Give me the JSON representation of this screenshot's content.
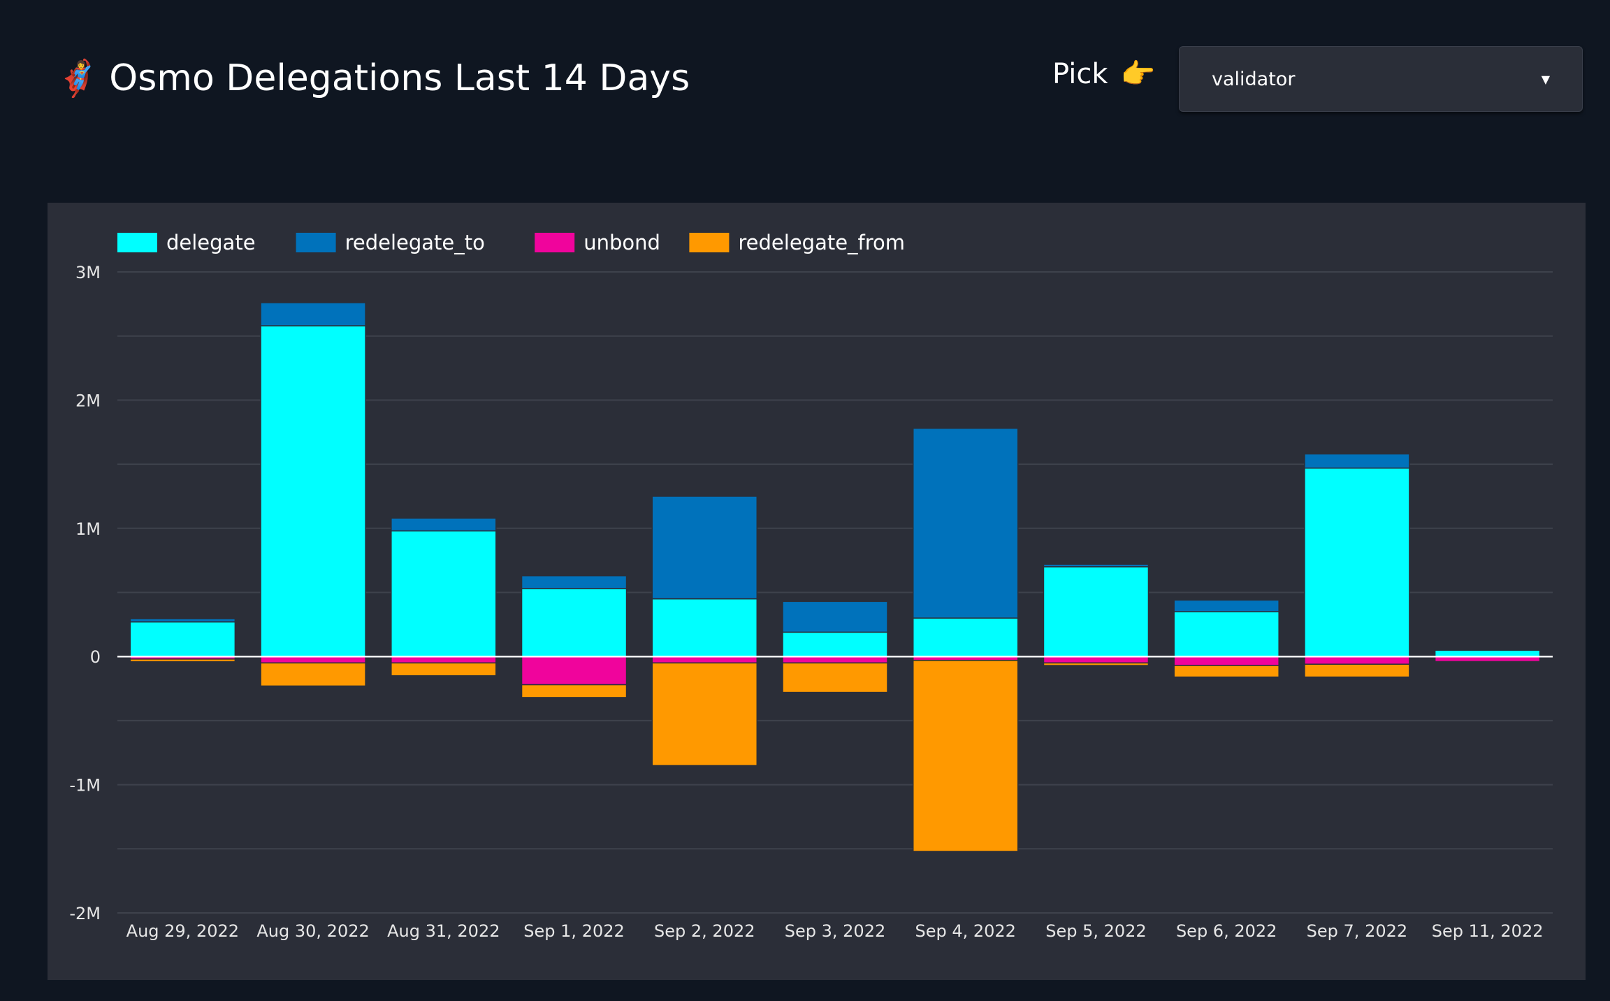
{
  "header": {
    "emoji": "🦸‍♀️",
    "title": "Osmo Delegations Last 14 Days",
    "pick_label": "Pick",
    "pick_emoji": "👉"
  },
  "select": {
    "value": "validator",
    "icon": "caret-down-icon"
  },
  "chart_data": {
    "type": "bar",
    "stacked": true,
    "grid": true,
    "legend": "top-left",
    "categories": [
      "Aug 29, 2022",
      "Aug 30, 2022",
      "Aug 31, 2022",
      "Sep 1, 2022",
      "Sep 2, 2022",
      "Sep 3, 2022",
      "Sep 4, 2022",
      "Sep 5, 2022",
      "Sep 6, 2022",
      "Sep 7, 2022",
      "Sep 11, 2022"
    ],
    "ylim": [
      -2000000,
      3000000
    ],
    "yticks": [
      {
        "value": 3000000,
        "label": "3M"
      },
      {
        "value": 2000000,
        "label": "2M"
      },
      {
        "value": 1000000,
        "label": "1M"
      },
      {
        "value": 0,
        "label": "0"
      },
      {
        "value": -1000000,
        "label": "-1M"
      },
      {
        "value": -2000000,
        "label": "-2M"
      }
    ],
    "series": [
      {
        "name": "delegate",
        "color": "#00ffff",
        "values": [
          270000,
          2580000,
          980000,
          530000,
          450000,
          190000,
          300000,
          700000,
          350000,
          1470000,
          50000
        ]
      },
      {
        "name": "redelegate_to",
        "color": "#0072bb",
        "values": [
          25000,
          180000,
          100000,
          100000,
          800000,
          240000,
          1480000,
          20000,
          90000,
          110000,
          5000
        ]
      },
      {
        "name": "unbond",
        "color": "#f0049c",
        "values": [
          -20000,
          -50000,
          -50000,
          -220000,
          -50000,
          -50000,
          -30000,
          -50000,
          -70000,
          -60000,
          -40000
        ]
      },
      {
        "name": "redelegate_from",
        "color": "#ff9900",
        "values": [
          -20000,
          -180000,
          -100000,
          -100000,
          -800000,
          -230000,
          -1490000,
          -20000,
          -90000,
          -100000,
          -3000
        ]
      }
    ]
  }
}
